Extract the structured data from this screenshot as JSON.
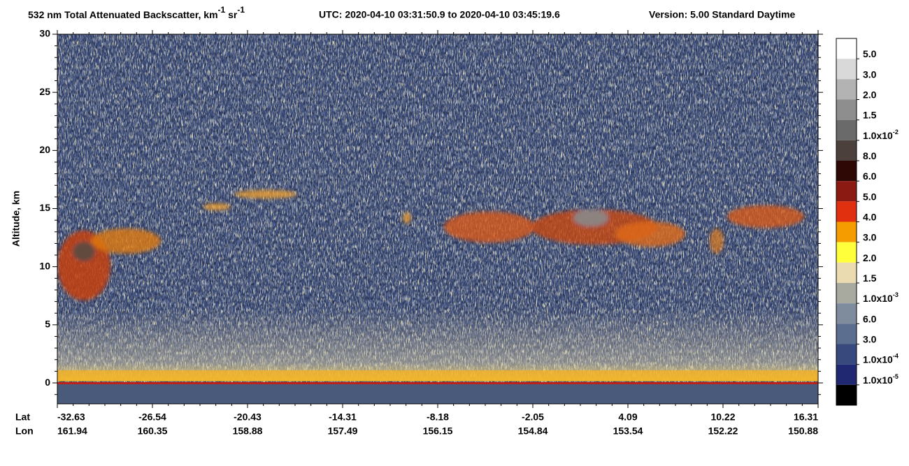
{
  "chart_data": {
    "type": "curtain",
    "title_parts": [
      "532 nm Total Attenuated Backscatter, km",
      "-1",
      " sr",
      "-1"
    ],
    "subtitle": "UTC:  2020-04-10 03:31:50.9  to  2020-04-10 03:45:19.6",
    "version": "Version: 5.00  Standard  Daytime",
    "y_label": "Altitude, km",
    "ylim": [
      -1.8,
      30
    ],
    "yticks": [
      0,
      5,
      10,
      15,
      20,
      25,
      30
    ],
    "x_rows": [
      {
        "name": "Lat",
        "labels": [
          -32.63,
          -26.54,
          -20.43,
          -14.31,
          -8.18,
          -2.05,
          4.09,
          10.22,
          16.31
        ]
      },
      {
        "name": "Lon",
        "labels": [
          161.94,
          160.35,
          158.88,
          157.49,
          156.15,
          154.84,
          153.54,
          152.22,
          150.88
        ]
      }
    ],
    "colorbar": {
      "colors": [
        "#ffffff",
        "#d9d9d9",
        "#b3b3b3",
        "#8e8e8e",
        "#6a6a6a",
        "#4b403c",
        "#2e0805",
        "#8b1a12",
        "#e0300f",
        "#f59c00",
        "#ffff3c",
        "#eadcb0",
        "#a9aa9f",
        "#7f8c9d",
        "#5b6e8f",
        "#384a7d",
        "#1f2870",
        "#000000"
      ],
      "labels": [
        {
          "mantissa": "5.0"
        },
        {
          "mantissa": "3.0"
        },
        {
          "mantissa": "2.0"
        },
        {
          "mantissa": "1.5"
        },
        {
          "mantissa": "1.0x10",
          "exponent": "-2"
        },
        {
          "mantissa": "8.0"
        },
        {
          "mantissa": "6.0"
        },
        {
          "mantissa": "5.0"
        },
        {
          "mantissa": "4.0"
        },
        {
          "mantissa": "3.0"
        },
        {
          "mantissa": "2.0"
        },
        {
          "mantissa": "1.5"
        },
        {
          "mantissa": "1.0x10",
          "exponent": "-3"
        },
        {
          "mantissa": "6.0"
        },
        {
          "mantissa": "3.0"
        },
        {
          "mantissa": "1.0x10",
          "exponent": "-4"
        },
        {
          "mantissa": "1.0x10",
          "exponent": "-5"
        }
      ]
    }
  }
}
